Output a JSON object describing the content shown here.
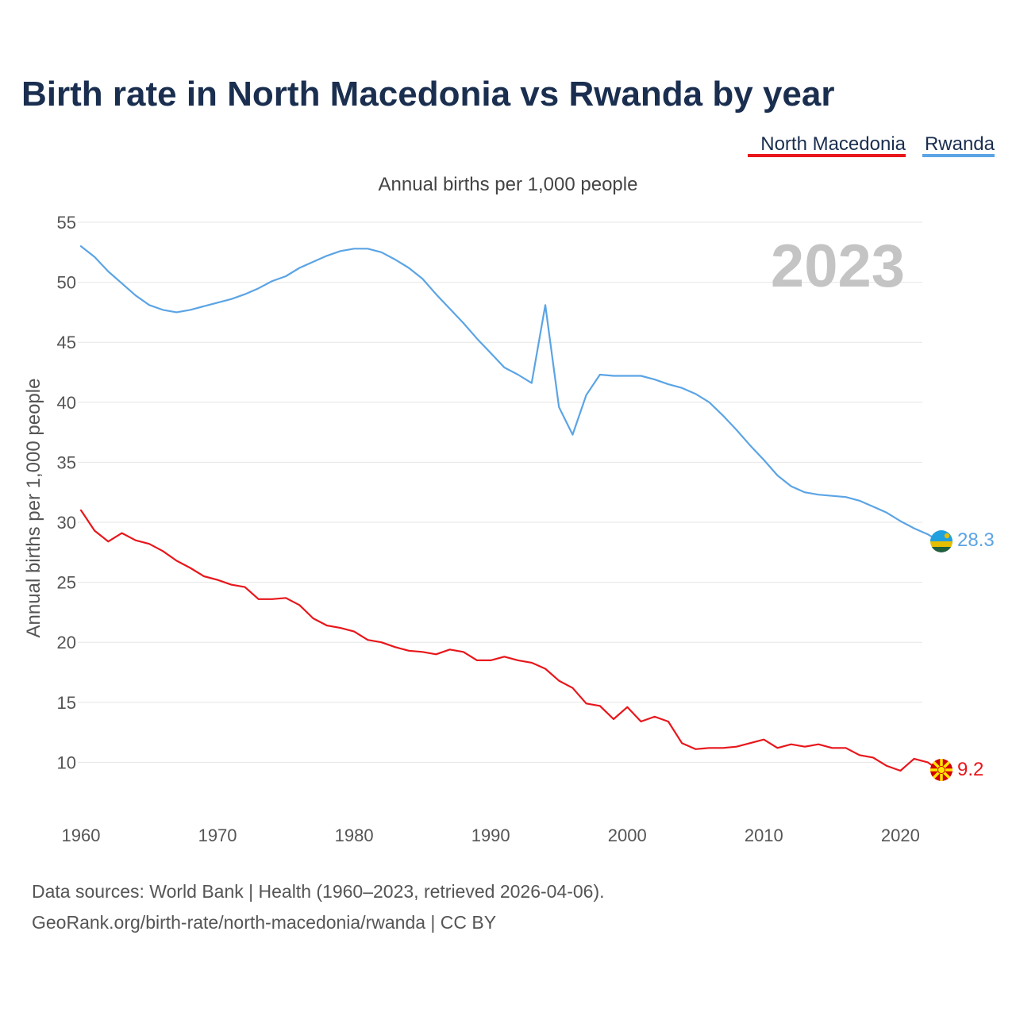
{
  "title": "Birth rate in North Macedonia vs Rwanda by year",
  "legend": [
    {
      "label": "North Macedonia",
      "color": "#e8161b"
    },
    {
      "label": "Rwanda",
      "color": "#5ba4e5"
    }
  ],
  "subtitle": "Annual births per 1,000 people",
  "year_display": "2023",
  "end_labels": {
    "north_macedonia": "9.2",
    "rwanda": "28.3"
  },
  "flags": {
    "north_macedonia": "north-macedonia-flag",
    "rwanda": "rwanda-flag"
  },
  "source": {
    "line1": "Data sources: World Bank | Health (1960–2023, retrieved 2026-04-06).",
    "line2": "GeoRank.org/birth-rate/north-macedonia/rwanda | CC BY"
  },
  "chart_data": {
    "type": "line",
    "title": "Birth rate in North Macedonia vs Rwanda by year",
    "xlabel": "",
    "ylabel": "Annual births per 1,000 people",
    "xlim": [
      1960,
      2023
    ],
    "ylim": [
      5,
      55
    ],
    "x_ticks": [
      "1960",
      "1970",
      "1980",
      "1990",
      "2000",
      "2010",
      "2020"
    ],
    "y_ticks": [
      "10",
      "15",
      "20",
      "25",
      "30",
      "35",
      "40",
      "45",
      "50",
      "55"
    ],
    "grid": true,
    "legend_position": "top-right",
    "x": [
      1960,
      1961,
      1962,
      1963,
      1964,
      1965,
      1966,
      1967,
      1968,
      1969,
      1970,
      1971,
      1972,
      1973,
      1974,
      1975,
      1976,
      1977,
      1978,
      1979,
      1980,
      1981,
      1982,
      1983,
      1984,
      1985,
      1986,
      1987,
      1988,
      1989,
      1990,
      1991,
      1992,
      1993,
      1994,
      1995,
      1996,
      1997,
      1998,
      1999,
      2000,
      2001,
      2002,
      2003,
      2004,
      2005,
      2006,
      2007,
      2008,
      2009,
      2010,
      2011,
      2012,
      2013,
      2014,
      2015,
      2016,
      2017,
      2018,
      2019,
      2020,
      2021,
      2022,
      2023
    ],
    "series": [
      {
        "name": "North Macedonia",
        "color": "#e8161b",
        "values": [
          31.0,
          29.3,
          28.4,
          29.1,
          28.5,
          28.2,
          27.6,
          26.8,
          26.2,
          25.5,
          25.2,
          24.8,
          24.6,
          23.6,
          23.6,
          23.7,
          23.1,
          22.0,
          21.4,
          21.2,
          20.9,
          20.2,
          20.0,
          19.6,
          19.3,
          19.2,
          19.0,
          19.4,
          19.2,
          18.5,
          18.5,
          18.8,
          18.5,
          18.3,
          17.8,
          16.8,
          16.2,
          14.9,
          14.7,
          13.6,
          14.6,
          13.4,
          13.8,
          13.4,
          11.6,
          11.1,
          11.2,
          11.2,
          11.3,
          11.6,
          11.9,
          11.2,
          11.5,
          11.3,
          11.5,
          11.2,
          11.2,
          10.6,
          10.4,
          9.7,
          9.3,
          10.3,
          10.0,
          9.2
        ]
      },
      {
        "name": "Rwanda",
        "color": "#5ba4e5",
        "values": [
          53.0,
          52.1,
          50.9,
          49.9,
          48.9,
          48.1,
          47.7,
          47.5,
          47.7,
          48.0,
          48.3,
          48.6,
          49.0,
          49.5,
          50.1,
          50.5,
          51.2,
          51.7,
          52.2,
          52.6,
          52.8,
          52.8,
          52.5,
          51.9,
          51.2,
          50.3,
          49.0,
          47.8,
          46.6,
          45.3,
          44.1,
          42.9,
          42.3,
          41.6,
          48.1,
          39.6,
          37.3,
          40.6,
          42.3,
          42.2,
          42.2,
          42.2,
          41.9,
          41.5,
          41.2,
          40.7,
          40.0,
          38.9,
          37.7,
          36.4,
          35.2,
          33.9,
          33.0,
          32.5,
          32.3,
          32.2,
          32.1,
          31.8,
          31.3,
          30.8,
          30.1,
          29.5,
          29.0,
          28.3
        ]
      }
    ]
  }
}
